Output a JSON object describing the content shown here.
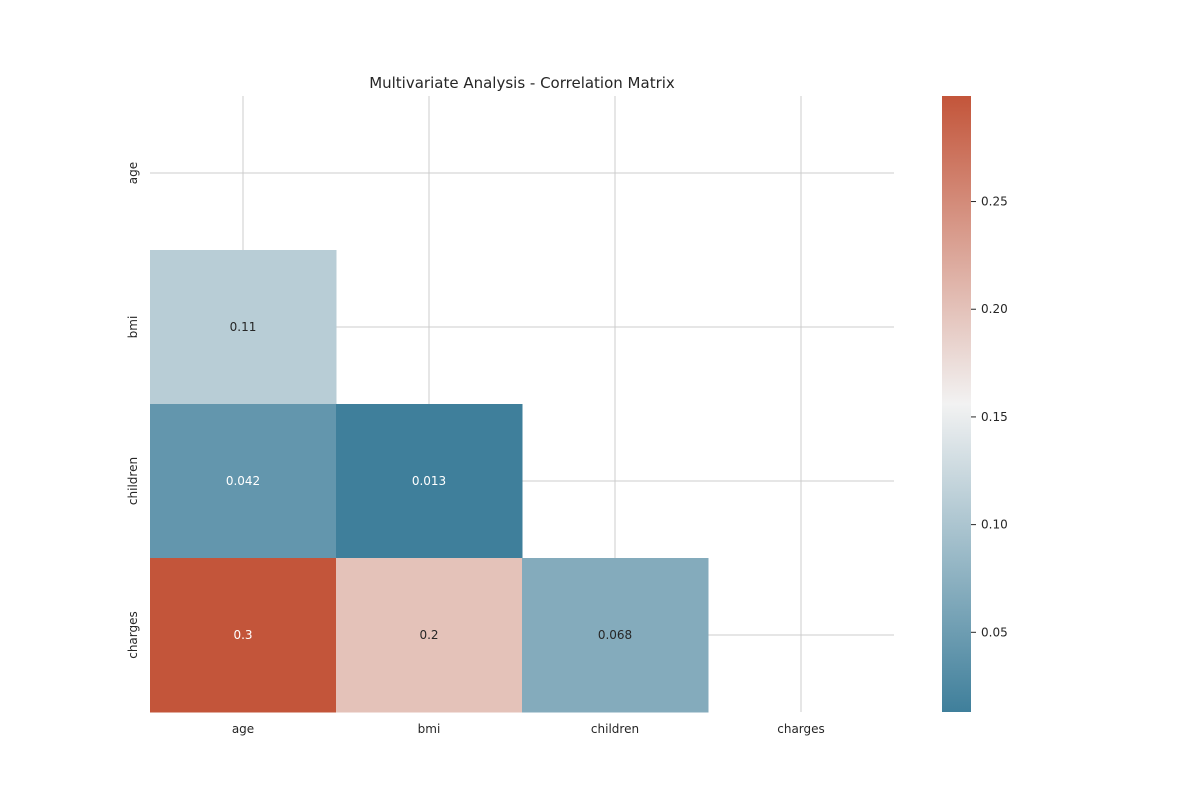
{
  "chart_data": {
    "type": "heatmap",
    "title": "Multivariate Analysis - Correlation Matrix",
    "xlabel": "",
    "ylabel": "",
    "x_categories": [
      "age",
      "bmi",
      "children",
      "charges"
    ],
    "y_categories": [
      "age",
      "bmi",
      "children",
      "charges"
    ],
    "mask": "upper-triangle-including-diagonal",
    "cells": [
      {
        "row": "bmi",
        "col": "age",
        "value": 0.11,
        "label": "0.11"
      },
      {
        "row": "children",
        "col": "age",
        "value": 0.042,
        "label": "0.042"
      },
      {
        "row": "children",
        "col": "bmi",
        "value": 0.013,
        "label": "0.013"
      },
      {
        "row": "charges",
        "col": "age",
        "value": 0.3,
        "label": "0.3"
      },
      {
        "row": "charges",
        "col": "bmi",
        "value": 0.2,
        "label": "0.2"
      },
      {
        "row": "charges",
        "col": "children",
        "value": 0.068,
        "label": "0.068"
      }
    ],
    "colorbar": {
      "vmin": 0.013,
      "vmax": 0.299,
      "ticks": [
        0.05,
        0.1,
        0.15,
        0.2,
        0.25
      ],
      "tick_labels": [
        "0.05",
        "0.10",
        "0.15",
        "0.20",
        "0.25"
      ],
      "colors": [
        "#3f7f9b",
        "#f2f2f2",
        "#c3553a"
      ]
    },
    "grid": true,
    "legend": "colorbar-right"
  }
}
